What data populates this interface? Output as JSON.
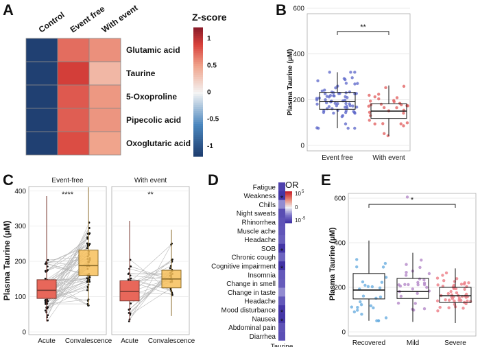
{
  "colors": {
    "navy": "#1c3a6b",
    "red_dark": "#d8483c",
    "red_mid": "#e07060",
    "salmon": "#f0a48c",
    "blue_pts": "#5a64c8",
    "red_pts": "#e05a5a",
    "orange_box": "#f7c05a",
    "red_box": "#e8675a",
    "purple": "#5a4cbc",
    "light_blue_pts": "#6aaee0",
    "mauve_pts": "#b488c8",
    "pink_pts": "#ec7c84"
  },
  "chart_data": [
    {
      "panel": "A",
      "type": "heatmap",
      "columns": [
        "Control",
        "Event free",
        "With event"
      ],
      "rows": [
        "Glutamic acid",
        "Taurine",
        "5-Oxoproline",
        "Pipecolic acid",
        "Oxoglutaric acid"
      ],
      "values": [
        [
          -1.15,
          0.72,
          0.58
        ],
        [
          -1.15,
          0.92,
          0.38
        ],
        [
          -1.15,
          0.8,
          0.55
        ],
        [
          -1.15,
          0.78,
          0.56
        ],
        [
          -1.15,
          0.85,
          0.5
        ]
      ],
      "legend_title": "Z-score",
      "legend_ticks": [
        "1",
        "0.5",
        "0",
        "-0.5",
        "-1"
      ],
      "legend_tick_values": [
        1,
        0.5,
        0,
        -0.5,
        -1
      ],
      "ylim": [
        -1.2,
        1.2
      ]
    },
    {
      "panel": "B",
      "type": "box",
      "ylabel": "Plasma Taurine (μM)",
      "categories": [
        "Event free",
        "With event"
      ],
      "ylim": [
        0,
        600
      ],
      "yticks": [
        "0",
        "200",
        "400",
        "600"
      ],
      "ytick_values": [
        0,
        200,
        400,
        600
      ],
      "boxes": [
        {
          "name": "Event free",
          "q1": 158,
          "median": 192,
          "q3": 232,
          "low": 75,
          "high": 320,
          "n": 70
        },
        {
          "name": "With event",
          "q1": 118,
          "median": 150,
          "q3": 182,
          "low": 42,
          "high": 262,
          "n": 32
        }
      ],
      "significance": "**"
    },
    {
      "panel": "C",
      "type": "paired-box",
      "ylabel": "Plasma Taurine (μM)",
      "ylim": [
        0,
        420
      ],
      "yticks": [
        "0",
        "100",
        "200",
        "300",
        "400"
      ],
      "ytick_values": [
        0,
        100,
        200,
        300,
        400
      ],
      "facets": [
        {
          "title": "Event-free",
          "categories": [
            "Acute",
            "Convalescence"
          ],
          "significance": "****",
          "n": 60,
          "boxes": [
            {
              "q1": 95,
              "median": 118,
              "q3": 148,
              "low": 30,
              "high": 385
            },
            {
              "q1": 160,
              "median": 188,
              "q3": 232,
              "low": 75,
              "high": 410
            }
          ]
        },
        {
          "title": "With event",
          "categories": [
            "Acute",
            "Convalescence"
          ],
          "significance": "**",
          "n": 28,
          "boxes": [
            {
              "q1": 88,
              "median": 115,
              "q3": 145,
              "low": 30,
              "high": 315
            },
            {
              "q1": 125,
              "median": 150,
              "q3": 175,
              "low": 45,
              "high": 290
            }
          ]
        }
      ]
    },
    {
      "panel": "D",
      "type": "heatmap",
      "rows": [
        "Fatigue",
        "Weakness",
        "Chills",
        "Night sweats",
        "Rhinorrhea",
        "Muscle ache",
        "Headache",
        "SOB",
        "Chronic cough",
        "Cognitive impairment",
        "Insomnia",
        "Change in smell",
        "Change in taste",
        "Headache",
        "Mood disturbance",
        "Nausea",
        "Abdominal pain",
        "Diarrhea"
      ],
      "columns": [
        "Taurine"
      ],
      "log10_or": [
        -4.2,
        -4.6,
        -2.0,
        -3.8,
        -3.6,
        -3.5,
        -3.2,
        -4.6,
        -3.0,
        -4.7,
        -3.4,
        -3.3,
        -2.0,
        -3.4,
        -4.5,
        -4.6,
        -3.6,
        -3.7
      ],
      "significant": [
        false,
        true,
        false,
        false,
        false,
        false,
        false,
        true,
        false,
        true,
        false,
        false,
        false,
        false,
        true,
        true,
        false,
        false
      ],
      "star": "*",
      "legend_title": "OR",
      "legend_top": "10",
      "legend_top_exp": "5",
      "legend_mid": "0",
      "legend_bot": "10",
      "legend_bot_exp": "-5",
      "xlabel": "Taurine"
    },
    {
      "panel": "E",
      "type": "box",
      "ylabel": "Plasma Taurine (μM)",
      "categories": [
        "Recovered",
        "Mild",
        "Severe"
      ],
      "ylim": [
        0,
        640
      ],
      "yticks": [
        "0",
        "200",
        "400",
        "600"
      ],
      "ytick_values": [
        0,
        200,
        400,
        600
      ],
      "boxes": [
        {
          "name": "Recovered",
          "q1": 148,
          "median": 188,
          "q3": 262,
          "low": 50,
          "high": 410,
          "n": 28
        },
        {
          "name": "Mild",
          "q1": 150,
          "median": 182,
          "q3": 240,
          "low": 45,
          "high": 355,
          "n": 28,
          "outlier": 605
        },
        {
          "name": "Severe",
          "q1": 132,
          "median": 162,
          "q3": 200,
          "low": 40,
          "high": 285,
          "n": 50
        }
      ],
      "significance": "*"
    }
  ],
  "panel_labels": [
    "A",
    "B",
    "C",
    "D",
    "E"
  ]
}
